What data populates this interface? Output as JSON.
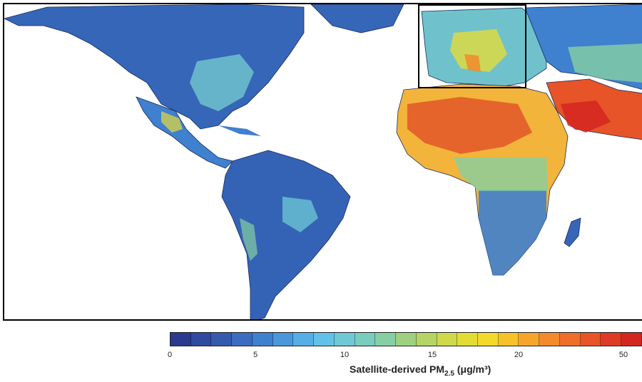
{
  "legend": {
    "title_main": "Satellite-derived PM",
    "title_sub": "2.5",
    "title_unit": "(μg/m³)",
    "ticks": [
      "0",
      "5",
      "10",
      "15",
      "20",
      "50"
    ],
    "colors": [
      "#2b3a8f",
      "#2f4a9e",
      "#3559ad",
      "#3b6cbf",
      "#3f80cf",
      "#4a97dc",
      "#55aee6",
      "#62c1e6",
      "#6ec9d4",
      "#79cdbd",
      "#86cfa3",
      "#9dd17f",
      "#b5d462",
      "#cfd94a",
      "#e2dc35",
      "#f2d92a",
      "#f7c12a",
      "#f6a52b",
      "#f38a2b",
      "#ee6e2a",
      "#e65427",
      "#de3a24",
      "#d42621"
    ]
  },
  "map": {
    "colors": {
      "low": "#2f54a8",
      "low_mid": "#3f86d0",
      "mid": "#6cc7d2",
      "mid_high": "#e5dc3a",
      "high": "#f28a2c",
      "very_high": "#dc3b24",
      "ocean": "#ffffff",
      "border": "#000000"
    }
  }
}
